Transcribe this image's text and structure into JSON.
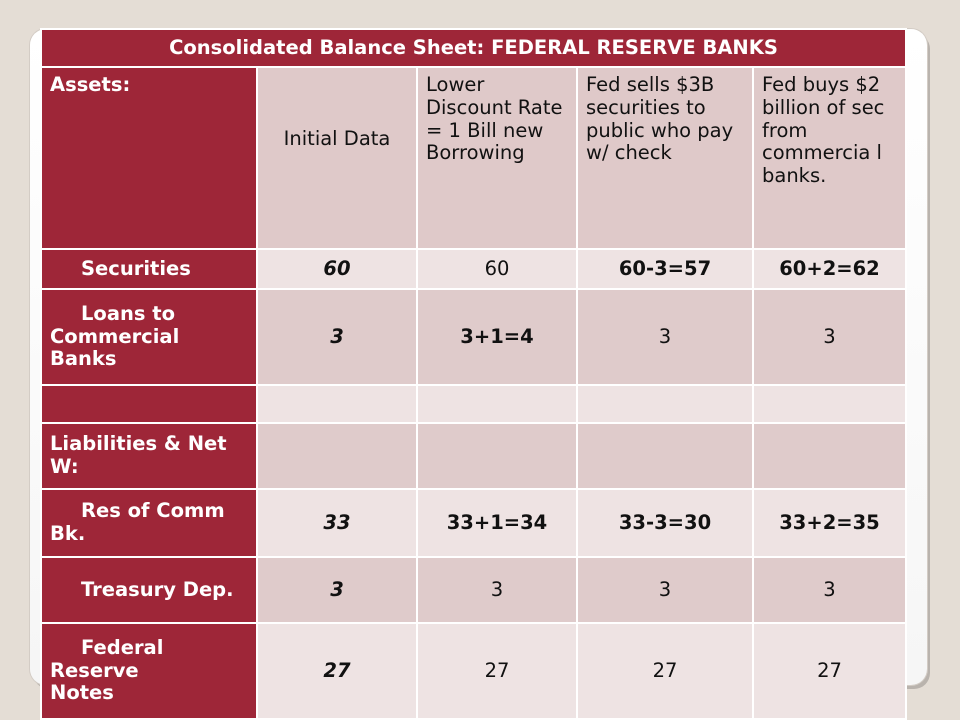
{
  "table": {
    "title": "Consolidated Balance Sheet: FEDERAL RESERVE BANKS",
    "header": {
      "assets_label": "Assets:",
      "columns": [
        "Initial Data",
        "Lower Discount Rate = 1 Bill new Borrowing",
        "Fed sells $3B securities to public who pay w/ check",
        "Fed buys $2 billion of sec from commercia l banks."
      ]
    },
    "rows": [
      {
        "label": "Securities",
        "values": [
          "60",
          "60",
          "60-3=57",
          "60+2=62"
        ]
      },
      {
        "label": "Loans to Commercial Banks",
        "values": [
          "3",
          "3+1=4",
          "3",
          "3"
        ]
      },
      {
        "label": "",
        "values": [
          "",
          "",
          "",
          ""
        ]
      },
      {
        "label": "Liabilities & Net W:",
        "values": [
          "",
          "",
          "",
          ""
        ]
      },
      {
        "label": "Res of Comm Bk.",
        "values": [
          "33",
          "33+1=34",
          "33-3=30",
          "33+2=35"
        ]
      },
      {
        "label": "Treasury Dep.",
        "values": [
          "3",
          "3",
          "3",
          "3"
        ]
      },
      {
        "label": "Federal Reserve Notes",
        "values": [
          "27",
          "27",
          "27",
          "27"
        ]
      }
    ]
  },
  "colors": {
    "header_maroon": "#9e2638",
    "cell_light": "#eee3e3",
    "cell_dark": "#dfcbcb",
    "highlight_orange": "#c46a0c"
  }
}
